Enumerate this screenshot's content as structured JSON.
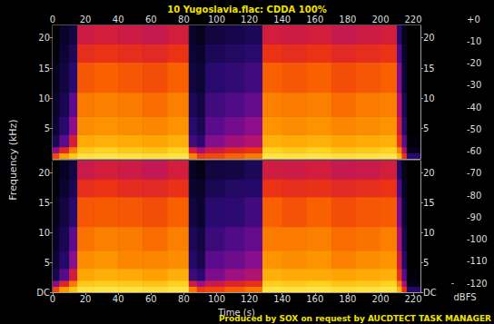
{
  "chart_data": {
    "type": "spectrogram",
    "title": "10 Yugoslavia.flac: CDDA 100%",
    "x_label": "Time (s)",
    "y_label": "Frequency (kHz)",
    "footer": "Produced by SOX on request by AUCDTECT TASK MANAGER",
    "xlim": [
      0,
      224.4
    ],
    "xticks": [
      0,
      20,
      40,
      60,
      80,
      100,
      120,
      140,
      160,
      180,
      200,
      220
    ],
    "ylim": [
      0,
      22.05
    ],
    "time_edges": [
      0,
      4,
      10,
      15,
      25,
      40,
      55,
      70,
      83,
      88,
      93,
      105,
      117,
      128,
      140,
      155,
      170,
      185,
      200,
      210,
      213,
      216,
      224.4
    ],
    "freq_edges": [
      0,
      1,
      2,
      4,
      7,
      11,
      16,
      19,
      22.05
    ],
    "panels": [
      {
        "yticks": [
          5,
          10,
          15,
          20
        ],
        "values": [
          [
            -45,
            -80,
            -105,
            -110,
            -112,
            -115,
            -118,
            -120
          ],
          [
            -30,
            -55,
            -90,
            -100,
            -105,
            -108,
            -110,
            -112
          ],
          [
            -22,
            -35,
            -60,
            -80,
            -90,
            -100,
            -104,
            -108
          ],
          [
            -15,
            -22,
            -28,
            -33,
            -36,
            -42,
            -52,
            -62
          ],
          [
            -14,
            -20,
            -27,
            -32,
            -35,
            -40,
            -50,
            -60
          ],
          [
            -15,
            -22,
            -28,
            -33,
            -36,
            -42,
            -52,
            -62
          ],
          [
            -16,
            -23,
            -29,
            -34,
            -38,
            -44,
            -54,
            -64
          ],
          [
            -14,
            -20,
            -27,
            -32,
            -35,
            -40,
            -50,
            -60
          ],
          [
            -35,
            -60,
            -95,
            -100,
            -104,
            -108,
            -110,
            -112
          ],
          [
            -48,
            -75,
            -100,
            -105,
            -108,
            -110,
            -112,
            -115
          ],
          [
            -45,
            -62,
            -82,
            -90,
            -95,
            -100,
            -104,
            -108
          ],
          [
            -40,
            -55,
            -75,
            -85,
            -92,
            -98,
            -102,
            -106
          ],
          [
            -36,
            -50,
            -70,
            -80,
            -88,
            -95,
            -100,
            -104
          ],
          [
            -14,
            -20,
            -27,
            -32,
            -35,
            -40,
            -50,
            -60
          ],
          [
            -15,
            -22,
            -28,
            -33,
            -36,
            -42,
            -52,
            -62
          ],
          [
            -14,
            -20,
            -27,
            -32,
            -35,
            -40,
            -50,
            -60
          ],
          [
            -16,
            -23,
            -29,
            -34,
            -38,
            -44,
            -54,
            -64
          ],
          [
            -15,
            -22,
            -28,
            -33,
            -36,
            -42,
            -52,
            -62
          ],
          [
            -14,
            -20,
            -27,
            -32,
            -35,
            -40,
            -50,
            -60
          ],
          [
            -25,
            -35,
            -50,
            -60,
            -70,
            -82,
            -92,
            -100
          ],
          [
            -50,
            -72,
            -90,
            -100,
            -105,
            -110,
            -112,
            -115
          ],
          [
            -100,
            -115,
            -118,
            -120,
            -120,
            -120,
            -120,
            -120
          ]
        ]
      },
      {
        "yticks": [
          {
            "value": 0,
            "label": "DC"
          },
          5,
          10,
          15,
          20
        ],
        "values": [
          [
            -46,
            -82,
            -106,
            -110,
            -113,
            -116,
            -118,
            -120
          ],
          [
            -31,
            -56,
            -91,
            -101,
            -105,
            -108,
            -111,
            -113
          ],
          [
            -23,
            -36,
            -61,
            -81,
            -90,
            -100,
            -105,
            -108
          ],
          [
            -15,
            -22,
            -29,
            -33,
            -37,
            -42,
            -52,
            -63
          ],
          [
            -14,
            -21,
            -27,
            -32,
            -35,
            -41,
            -50,
            -60
          ],
          [
            -15,
            -22,
            -28,
            -34,
            -36,
            -42,
            -53,
            -62
          ],
          [
            -16,
            -23,
            -30,
            -34,
            -38,
            -44,
            -54,
            -65
          ],
          [
            -14,
            -20,
            -27,
            -33,
            -35,
            -40,
            -51,
            -60
          ],
          [
            -36,
            -61,
            -96,
            -101,
            -104,
            -108,
            -111,
            -113
          ],
          [
            -49,
            -76,
            -100,
            -106,
            -108,
            -111,
            -112,
            -116
          ],
          [
            -46,
            -63,
            -83,
            -90,
            -96,
            -100,
            -105,
            -108
          ],
          [
            -41,
            -56,
            -76,
            -86,
            -92,
            -99,
            -102,
            -107
          ],
          [
            -37,
            -51,
            -71,
            -81,
            -88,
            -95,
            -101,
            -104
          ],
          [
            -14,
            -21,
            -27,
            -32,
            -36,
            -40,
            -50,
            -61
          ],
          [
            -15,
            -22,
            -28,
            -33,
            -36,
            -43,
            -52,
            -62
          ],
          [
            -14,
            -20,
            -28,
            -32,
            -35,
            -40,
            -51,
            -60
          ],
          [
            -16,
            -23,
            -29,
            -35,
            -38,
            -44,
            -54,
            -64
          ],
          [
            -15,
            -22,
            -28,
            -33,
            -37,
            -42,
            -52,
            -63
          ],
          [
            -14,
            -20,
            -27,
            -32,
            -35,
            -41,
            -50,
            -60
          ],
          [
            -26,
            -36,
            -51,
            -61,
            -71,
            -83,
            -93,
            -101
          ],
          [
            -51,
            -73,
            -91,
            -101,
            -106,
            -110,
            -113,
            -116
          ],
          [
            -101,
            -116,
            -118,
            -120,
            -120,
            -120,
            -120,
            -120
          ]
        ]
      }
    ],
    "colorbar": {
      "label": "dBFS",
      "range": [
        -120,
        0
      ],
      "ticks": [
        -120,
        -110,
        -100,
        -90,
        -80,
        -70,
        -60,
        -50,
        -40,
        -30,
        -20,
        -10,
        {
          "value": 0,
          "label": "+0"
        }
      ]
    }
  }
}
